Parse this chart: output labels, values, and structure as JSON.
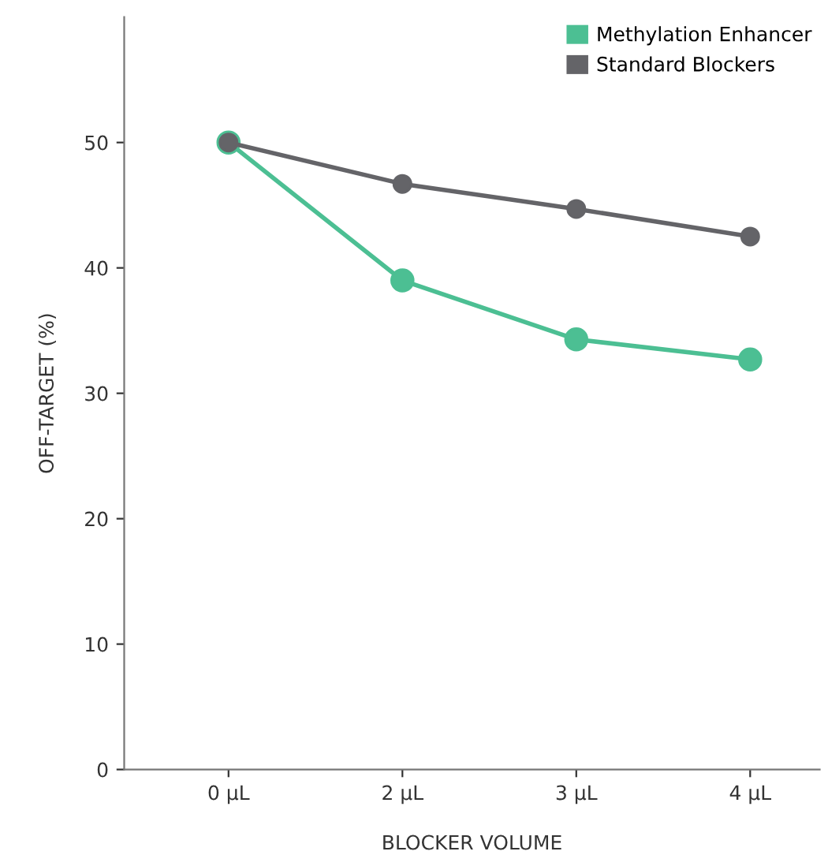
{
  "chart_data": {
    "type": "line",
    "xlabel": "BLOCKER VOLUME",
    "ylabel": "OFF-TARGET (%)",
    "categories": [
      "0 µL",
      "2 µL",
      "3 µL",
      "4 µL"
    ],
    "series": [
      {
        "name": "Methylation Enhancer",
        "color": "#4cbf93",
        "values": [
          50,
          39,
          34.3,
          32.7
        ]
      },
      {
        "name": "Standard Blockers",
        "color": "#646468",
        "values": [
          50,
          46.7,
          44.7,
          42.5
        ]
      }
    ],
    "ylim": [
      0,
      60
    ],
    "yticks": [
      0,
      10,
      20,
      30,
      40,
      50
    ],
    "grid": false,
    "legend": "top right",
    "marker": "circle",
    "line_style": "solid"
  }
}
